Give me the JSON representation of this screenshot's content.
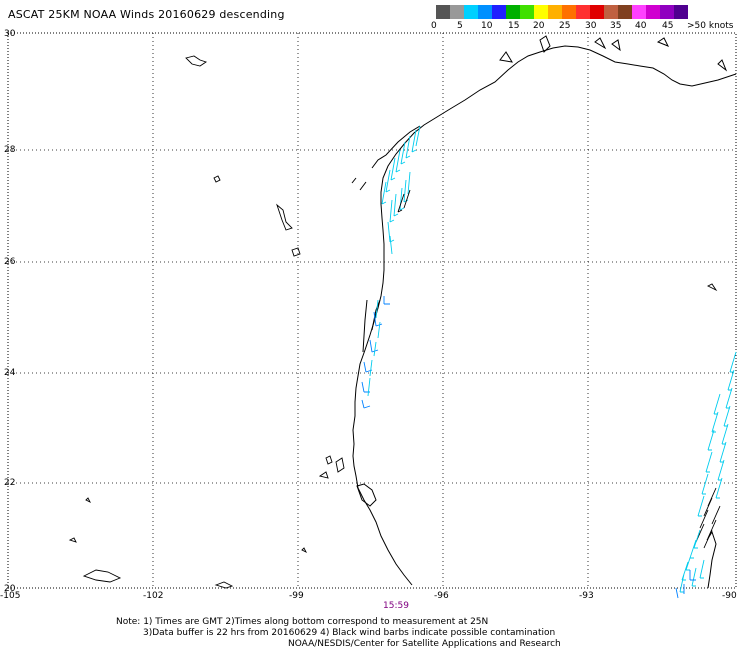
{
  "title": "ASCAT 25KM NOAA Winds 20160629 descending",
  "legend": {
    "colors": [
      "#555555",
      "#999999",
      "#00d0ff",
      "#0090ff",
      "#2020ff",
      "#00b000",
      "#40e000",
      "#ffff00",
      "#ffb000",
      "#ff7000",
      "#ff3030",
      "#e00000",
      "#c06040",
      "#804020",
      "#ff40ff",
      "#d000d0",
      "#9000c0",
      "#500090"
    ],
    "labels": [
      "0",
      "5",
      "10",
      "15",
      "20",
      "25",
      "30",
      "35",
      "40",
      "45",
      ">50 knots"
    ]
  },
  "axes": {
    "lon_labels": [
      "-105",
      "-102",
      "-99",
      "-96",
      "-93",
      "-90"
    ],
    "lat_labels": [
      "30",
      "28",
      "26",
      "24",
      "22",
      "20"
    ]
  },
  "time_label": "15:59",
  "notes": {
    "line1": "Note: 1) Times are GMT 2)Times along bottom correspond to measurement at 25N",
    "line2": "3)Data buffer is 22 hrs from 20160629 4) Black wind barbs indicate possible contamination",
    "line3": "NOAA/NESDIS/Center for Satellite Applications and Research"
  },
  "colors": {
    "barb_cyan": "#00ccee",
    "barb_blue": "#0080ff",
    "barb_black": "#000000",
    "coast": "#000000",
    "grid": "#000000"
  }
}
